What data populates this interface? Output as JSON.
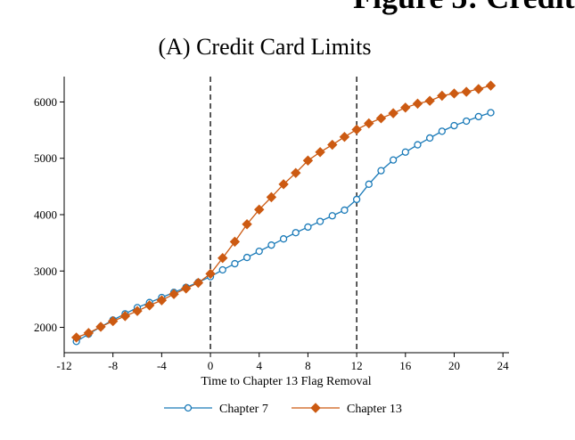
{
  "figure_title": "Figure 5: Credit",
  "chart_data": {
    "type": "line",
    "title": "(A) Credit Card Limits",
    "xlabel": "Time to Chapter 13 Flag Removal",
    "ylabel": "",
    "xlim": [
      -12,
      24.5
    ],
    "ylim": [
      1550,
      6450
    ],
    "xticks": [
      -12,
      -8,
      -4,
      0,
      4,
      8,
      12,
      16,
      20,
      24
    ],
    "xtick_labels": [
      "-12",
      "-8",
      "-4",
      "0",
      "4",
      "8",
      "12",
      "16",
      "20",
      "24"
    ],
    "yticks": [
      2000,
      3000,
      4000,
      5000,
      6000
    ],
    "ytick_labels": [
      "2000",
      "3000",
      "4000",
      "5000",
      "6000"
    ],
    "vlines": [
      0,
      12
    ],
    "grid": false,
    "legend_position": "bottom",
    "x": [
      -11,
      -10,
      -9,
      -8,
      -7,
      -6,
      -5,
      -4,
      -3,
      -2,
      -1,
      0,
      1,
      2,
      3,
      4,
      5,
      6,
      7,
      8,
      9,
      10,
      11,
      12,
      13,
      14,
      15,
      16,
      17,
      18,
      19,
      20,
      21,
      22,
      23
    ],
    "series": [
      {
        "name": "Chapter 7",
        "color": "#1a7ab8",
        "marker": "hollow-circle",
        "values": [
          1750,
          1880,
          2010,
          2130,
          2240,
          2350,
          2440,
          2530,
          2620,
          2710,
          2800,
          2900,
          3020,
          3130,
          3240,
          3350,
          3460,
          3570,
          3680,
          3780,
          3880,
          3980,
          4080,
          4270,
          4540,
          4780,
          4970,
          5110,
          5240,
          5360,
          5480,
          5580,
          5660,
          5740,
          5810
        ]
      },
      {
        "name": "Chapter 13",
        "color": "#cc5a12",
        "marker": "diamond",
        "values": [
          1820,
          1900,
          2010,
          2110,
          2200,
          2290,
          2390,
          2480,
          2590,
          2690,
          2790,
          2950,
          3230,
          3520,
          3830,
          4090,
          4310,
          4540,
          4740,
          4960,
          5110,
          5240,
          5380,
          5510,
          5620,
          5710,
          5800,
          5900,
          5970,
          6020,
          6110,
          6150,
          6180,
          6230,
          6290
        ]
      }
    ]
  }
}
